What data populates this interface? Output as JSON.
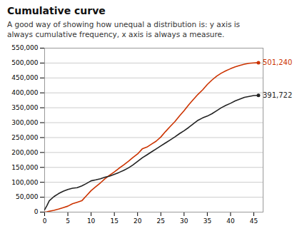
{
  "chart_data": {
    "type": "line",
    "title": "Cumulative curve",
    "subtitle": "A good way of showing how unequal a distribution is: y axis is\nalways cumulative frequency, x axis is always a measure.",
    "x": [
      0,
      0.5,
      1,
      2,
      3,
      4,
      5,
      6,
      7,
      8,
      9,
      10,
      11,
      12,
      13,
      14,
      15,
      16,
      17,
      18,
      19,
      20,
      21,
      22,
      23,
      24,
      25,
      26,
      27,
      28,
      29,
      30,
      31,
      32,
      33,
      34,
      35,
      36,
      37,
      38,
      39,
      40,
      41,
      42,
      43,
      44,
      45,
      46
    ],
    "series": [
      {
        "name": "501,240",
        "color": "#cc3300",
        "values": [
          0,
          1000,
          3000,
          6000,
          10000,
          15000,
          20000,
          28000,
          33000,
          38000,
          55000,
          72000,
          85000,
          98000,
          112000,
          124000,
          135000,
          147000,
          158000,
          170000,
          183000,
          195000,
          212000,
          218000,
          228000,
          238000,
          252000,
          270000,
          287000,
          303000,
          322000,
          340000,
          360000,
          378000,
          395000,
          410000,
          428000,
          443000,
          456000,
          466000,
          474000,
          481000,
          487000,
          492000,
          496000,
          499000,
          500500,
          501240
        ]
      },
      {
        "name": "391,722",
        "color": "#222222",
        "values": [
          8000,
          22000,
          38000,
          52000,
          62000,
          70000,
          76000,
          80000,
          82000,
          88000,
          96000,
          105000,
          108000,
          112000,
          117000,
          121000,
          127000,
          133000,
          140000,
          148000,
          158000,
          170000,
          182000,
          192000,
          202000,
          212000,
          222000,
          232000,
          242000,
          252000,
          263000,
          273000,
          284000,
          296000,
          308000,
          316000,
          322000,
          330000,
          340000,
          350000,
          358000,
          365000,
          373000,
          379000,
          385000,
          388000,
          391000,
          391722
        ]
      }
    ],
    "xlim": [
      0,
      47
    ],
    "xticks": [
      0,
      5,
      10,
      15,
      20,
      25,
      30,
      35,
      40,
      45
    ],
    "ylim": [
      0,
      550000
    ],
    "yticks": [
      0,
      {
        "value": 50000,
        "label": "50,000"
      },
      {
        "value": 100000,
        "label": "100,000"
      },
      {
        "value": 150000,
        "label": "150,000"
      },
      {
        "value": 200000,
        "label": "200,000"
      },
      {
        "value": 250000,
        "label": "250,000"
      },
      {
        "value": 300000,
        "label": "300,000"
      },
      {
        "value": 350000,
        "label": "350,000"
      },
      {
        "value": 400000,
        "label": "400,000"
      },
      {
        "value": 450000,
        "label": "450,000"
      },
      {
        "value": 500000,
        "label": "500,000"
      },
      {
        "value": 550000,
        "label": "550,000"
      }
    ],
    "grid": "y"
  }
}
